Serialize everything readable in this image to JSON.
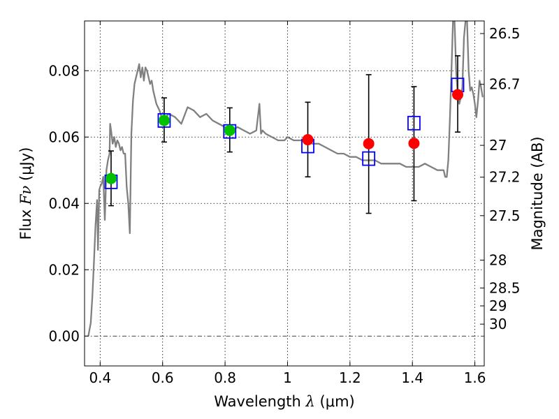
{
  "chart_data": {
    "type": "scatter",
    "title": "",
    "xlabel_prefix": "Wavelength",
    "xlabel_symbol": "λ",
    "xlabel_unit": "(μm)",
    "ylabel_prefix": "Flux",
    "ylabel_symbol": "Fν",
    "ylabel_unit": "(μJy)",
    "y2label": "Magnitude (AB)",
    "xlim": [
      0.35,
      1.63
    ],
    "ylim": [
      -0.009,
      0.095
    ],
    "grid": true,
    "x_ticks": [
      0.4,
      0.6,
      0.8,
      1.0,
      1.2,
      1.4,
      1.6
    ],
    "x_tick_labels": [
      "0.4",
      "0.6",
      "0.8",
      "1",
      "1.2",
      "1.4",
      "1.6"
    ],
    "y_ticks": [
      0.0,
      0.02,
      0.04,
      0.06,
      0.08
    ],
    "y_tick_labels": [
      "0.00",
      "0.02",
      "0.04",
      "0.06",
      "0.08"
    ],
    "magnitude_ticks": [
      {
        "label": "26.5",
        "flux": 0.0912
      },
      {
        "label": "26.7",
        "flux": 0.0759
      },
      {
        "label": "27",
        "flux": 0.0575
      },
      {
        "label": "27.2",
        "flux": 0.0479
      },
      {
        "label": "27.5",
        "flux": 0.0363
      },
      {
        "label": "28",
        "flux": 0.0229
      },
      {
        "label": "28.5",
        "flux": 0.0145
      },
      {
        "label": "29",
        "flux": 0.0091
      },
      {
        "label": "30",
        "flux": 0.0036
      }
    ],
    "series": [
      {
        "marker": "line",
        "color": "#808080",
        "x": [
          0.362,
          0.37,
          0.375,
          0.38,
          0.385,
          0.39,
          0.393,
          0.397,
          0.4,
          0.405,
          0.41,
          0.415,
          0.42,
          0.425,
          0.43,
          0.432,
          0.435,
          0.44,
          0.445,
          0.45,
          0.455,
          0.46,
          0.465,
          0.47,
          0.475,
          0.48,
          0.485,
          0.49,
          0.495,
          0.5,
          0.505,
          0.51,
          0.515,
          0.52,
          0.525,
          0.53,
          0.535,
          0.54,
          0.545,
          0.55,
          0.555,
          0.56,
          0.565,
          0.57,
          0.58,
          0.59,
          0.6,
          0.62,
          0.64,
          0.66,
          0.68,
          0.7,
          0.72,
          0.74,
          0.76,
          0.78,
          0.8,
          0.82,
          0.84,
          0.86,
          0.88,
          0.9,
          0.91,
          0.915,
          0.92,
          0.93,
          0.95,
          0.97,
          0.99,
          1.0,
          1.02,
          1.04,
          1.06,
          1.08,
          1.1,
          1.12,
          1.14,
          1.16,
          1.18,
          1.2,
          1.22,
          1.24,
          1.26,
          1.28,
          1.3,
          1.32,
          1.34,
          1.36,
          1.38,
          1.4,
          1.42,
          1.44,
          1.46,
          1.48,
          1.5,
          1.505,
          1.51,
          1.515,
          1.52,
          1.525,
          1.53,
          1.535,
          1.54,
          1.545,
          1.55,
          1.555,
          1.56,
          1.565,
          1.57,
          1.575,
          1.58,
          1.585,
          1.59,
          1.595,
          1.6,
          1.605,
          1.61,
          1.615,
          1.62,
          1.625
        ],
        "y": [
          0.0,
          0.004,
          0.012,
          0.022,
          0.033,
          0.041,
          0.026,
          0.044,
          0.045,
          0.046,
          0.048,
          0.035,
          0.05,
          0.053,
          0.055,
          0.064,
          0.062,
          0.058,
          0.06,
          0.057,
          0.059,
          0.058,
          0.056,
          0.057,
          0.055,
          0.055,
          0.045,
          0.04,
          0.031,
          0.061,
          0.071,
          0.076,
          0.078,
          0.08,
          0.082,
          0.078,
          0.081,
          0.077,
          0.081,
          0.08,
          0.078,
          0.076,
          0.077,
          0.074,
          0.07,
          0.068,
          0.065,
          0.067,
          0.066,
          0.064,
          0.069,
          0.068,
          0.066,
          0.067,
          0.065,
          0.064,
          0.063,
          0.062,
          0.063,
          0.062,
          0.061,
          0.062,
          0.07,
          0.061,
          0.062,
          0.061,
          0.06,
          0.059,
          0.059,
          0.06,
          0.059,
          0.059,
          0.059,
          0.058,
          0.058,
          0.057,
          0.056,
          0.055,
          0.055,
          0.054,
          0.054,
          0.053,
          0.053,
          0.053,
          0.052,
          0.052,
          0.052,
          0.052,
          0.051,
          0.051,
          0.051,
          0.052,
          0.051,
          0.05,
          0.05,
          0.048,
          0.048,
          0.053,
          0.065,
          0.08,
          0.095,
          0.095,
          0.08,
          0.073,
          0.07,
          0.072,
          0.075,
          0.09,
          0.095,
          0.095,
          0.08,
          0.074,
          0.075,
          0.073,
          0.07,
          0.066,
          0.071,
          0.077,
          0.075,
          0.072
        ]
      },
      {
        "marker": "open-square",
        "color": "#0000ff",
        "x": [
          0.435,
          0.605,
          0.815,
          1.065,
          1.26,
          1.405,
          1.545
        ],
        "y": [
          0.0465,
          0.065,
          0.0617,
          0.0573,
          0.0535,
          0.0642,
          0.0757
        ]
      },
      {
        "marker": "filled-circle-green",
        "color": "#00c000",
        "x": [
          0.435,
          0.605,
          0.815
        ],
        "y": [
          0.0475,
          0.065,
          0.062
        ]
      },
      {
        "marker": "filled-circle-red",
        "color": "#ff0000",
        "x": [
          1.065,
          1.26,
          1.405,
          1.545
        ],
        "y": [
          0.0592,
          0.058,
          0.0581,
          0.0728
        ]
      },
      {
        "marker": "errorbar",
        "color": "#000000",
        "x": [
          0.435,
          0.605,
          0.815,
          1.065,
          1.26,
          1.405,
          1.545
        ],
        "y_low": [
          0.0393,
          0.0585,
          0.0555,
          0.048,
          0.037,
          0.0408,
          0.0615
        ],
        "y_high": [
          0.0558,
          0.0718,
          0.0688,
          0.0705,
          0.0788,
          0.0752,
          0.0845
        ]
      }
    ]
  }
}
